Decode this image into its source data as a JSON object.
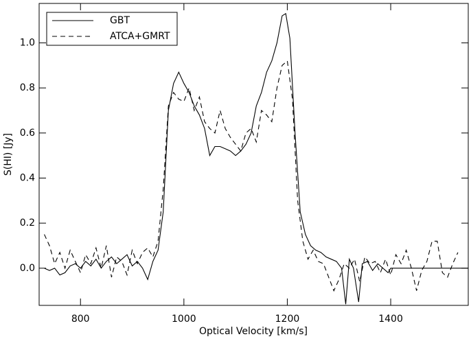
{
  "chart_data": {
    "type": "line",
    "x_label": "Optical Velocity [km/s]",
    "y_label": "S(HI) [Jy]",
    "xlim": [
      720,
      1550
    ],
    "ylim": [
      -0.165,
      1.175
    ],
    "xticks": [
      800,
      1000,
      1200,
      1400
    ],
    "yticks": [
      {
        "value": 0,
        "label": "0.0"
      },
      {
        "value": 0.2,
        "label": "0.2"
      },
      {
        "value": 0.4,
        "label": "0.4"
      },
      {
        "value": 0.6,
        "label": "0.6"
      },
      {
        "value": 0.8,
        "label": "0.8"
      },
      {
        "value": 1.0,
        "label": "1.0"
      }
    ],
    "legend": "upper left",
    "series": [
      {
        "name": "GBT",
        "color": "#000000",
        "dash": "solid",
        "x": [
          730,
          740,
          750,
          760,
          770,
          780,
          790,
          800,
          810,
          820,
          830,
          840,
          850,
          860,
          870,
          880,
          890,
          900,
          910,
          920,
          930,
          940,
          950,
          960,
          970,
          980,
          990,
          1000,
          1010,
          1020,
          1030,
          1040,
          1050,
          1060,
          1070,
          1080,
          1090,
          1100,
          1110,
          1120,
          1130,
          1140,
          1150,
          1160,
          1170,
          1180,
          1190,
          1197,
          1205,
          1215,
          1225,
          1235,
          1245,
          1255,
          1265,
          1275,
          1285,
          1295,
          1305,
          1313,
          1320,
          1328,
          1338,
          1345,
          1355,
          1365,
          1375,
          1385,
          1395,
          1400,
          1550
        ],
        "values": [
          0,
          -0.01,
          0,
          -0.03,
          -0.02,
          0.01,
          0.02,
          0,
          0.03,
          0.01,
          0.04,
          0,
          0.03,
          0.05,
          0.02,
          0.04,
          0.06,
          0.01,
          0.03,
          0,
          -0.05,
          0.03,
          0.08,
          0.25,
          0.7,
          0.82,
          0.87,
          0.82,
          0.78,
          0.72,
          0.68,
          0.62,
          0.5,
          0.54,
          0.54,
          0.53,
          0.52,
          0.5,
          0.52,
          0.55,
          0.6,
          0.72,
          0.78,
          0.87,
          0.92,
          1.0,
          1.12,
          1.13,
          1.02,
          0.6,
          0.25,
          0.15,
          0.1,
          0.08,
          0.07,
          0.05,
          0.04,
          0.03,
          0.0,
          -0.16,
          0.04,
          0.0,
          -0.15,
          0.02,
          0.03,
          -0.01,
          0.02,
          0,
          -0.02,
          0,
          0
        ]
      },
      {
        "name": "ATCA+GMRT",
        "color": "#000000",
        "dash": "dashed",
        "x": [
          730,
          740,
          750,
          760,
          770,
          780,
          790,
          800,
          810,
          820,
          830,
          840,
          850,
          860,
          870,
          880,
          890,
          900,
          910,
          920,
          930,
          940,
          950,
          960,
          970,
          980,
          990,
          1000,
          1010,
          1020,
          1030,
          1040,
          1050,
          1060,
          1070,
          1080,
          1090,
          1100,
          1110,
          1120,
          1130,
          1140,
          1150,
          1160,
          1170,
          1180,
          1190,
          1200,
          1210,
          1220,
          1230,
          1240,
          1250,
          1260,
          1270,
          1280,
          1290,
          1300,
          1310,
          1320,
          1330,
          1340,
          1350,
          1360,
          1370,
          1380,
          1390,
          1400,
          1410,
          1420,
          1430,
          1440,
          1450,
          1460,
          1470,
          1480,
          1490,
          1500,
          1510,
          1520,
          1530
        ],
        "values": [
          0.15,
          0.1,
          0.02,
          0.07,
          0.0,
          0.08,
          0.03,
          -0.02,
          0.06,
          0.02,
          0.09,
          0.0,
          0.1,
          -0.04,
          0.05,
          0.03,
          -0.03,
          0.08,
          0.02,
          0.07,
          0.09,
          0.05,
          0.12,
          0.35,
          0.72,
          0.78,
          0.75,
          0.74,
          0.8,
          0.7,
          0.76,
          0.65,
          0.62,
          0.6,
          0.7,
          0.62,
          0.58,
          0.55,
          0.52,
          0.6,
          0.62,
          0.56,
          0.7,
          0.68,
          0.65,
          0.8,
          0.9,
          0.92,
          0.75,
          0.3,
          0.12,
          0.04,
          0.08,
          0.03,
          0.02,
          -0.04,
          -0.1,
          -0.05,
          0.02,
          0.0,
          0.04,
          -0.06,
          0.05,
          0.02,
          0.03,
          -0.02,
          0.04,
          -0.03,
          0.06,
          0.02,
          0.08,
          0.0,
          -0.1,
          -0.01,
          0.03,
          0.12,
          0.12,
          -0.02,
          -0.04,
          0.02,
          0.07
        ]
      }
    ]
  }
}
